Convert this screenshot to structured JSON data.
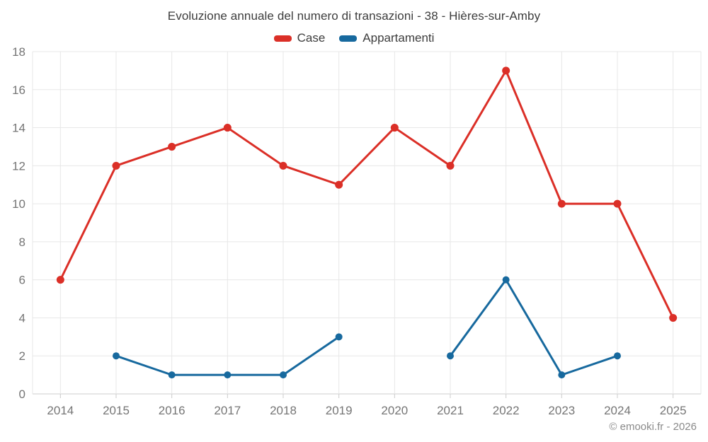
{
  "title": "Evoluzione annuale del numero di transazioni - 38 - Hières-sur-Amby",
  "footer": "© emooki.fr - 2026",
  "colors": {
    "case_red": "#db2f27",
    "apartment_blue": "#17699e",
    "grid": "#e7e7e7",
    "axis": "#cccccc",
    "tick_label": "#757575",
    "title_text": "#3c3c3c",
    "footer_text": "#8a8a8a",
    "background": "#ffffff"
  },
  "chart_data": {
    "type": "line",
    "title": "Evoluzione annuale del numero di transazioni - 38 - Hières-sur-Amby",
    "categories": [
      "2014",
      "2015",
      "2016",
      "2017",
      "2018",
      "2019",
      "2020",
      "2021",
      "2022",
      "2023",
      "2024",
      "2025"
    ],
    "series": [
      {
        "name": "Case",
        "color": "#db2f27",
        "marker_radius": 5.5,
        "values": [
          6,
          12,
          13,
          14,
          12,
          11,
          14,
          12,
          17,
          10,
          10,
          4
        ]
      },
      {
        "name": "Appartamenti",
        "color": "#17699e",
        "marker_radius": 5,
        "values": [
          null,
          2,
          1,
          1,
          1,
          3,
          null,
          2,
          6,
          1,
          2,
          null
        ]
      }
    ],
    "ylim": [
      0,
      18
    ],
    "ytick_step": 2,
    "grid": true,
    "legend_position": "top",
    "note": "Appartamenti series has gaps (no data) at 2014, 2020 and 2025"
  }
}
